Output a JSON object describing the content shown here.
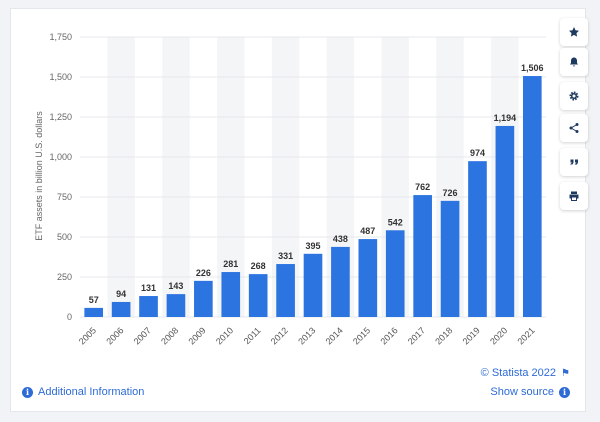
{
  "chart_data": {
    "type": "bar",
    "title": "",
    "xlabel": "",
    "ylabel": "ETF assets in billion U.S. dollars",
    "categories": [
      "2005",
      "2006",
      "2007",
      "2008",
      "2009",
      "2010",
      "2011",
      "2012",
      "2013",
      "2014",
      "2015",
      "2016",
      "2017",
      "2018",
      "2019",
      "2020",
      "2021"
    ],
    "values": [
      57,
      94,
      131,
      143,
      226,
      281,
      268,
      331,
      395,
      438,
      487,
      542,
      762,
      726,
      974,
      1194,
      1506
    ],
    "value_labels": [
      "57",
      "94",
      "131",
      "143",
      "226",
      "281",
      "268",
      "331",
      "395",
      "438",
      "487",
      "542",
      "762",
      "726",
      "974",
      "1,194",
      "1,506"
    ],
    "ylim": [
      0,
      1750
    ],
    "yticks": [
      0,
      250,
      500,
      750,
      1000,
      1250,
      1500,
      1750
    ],
    "ytick_labels": [
      "0",
      "250",
      "500",
      "750",
      "1,000",
      "1,250",
      "1,500",
      "1,750"
    ],
    "grid": true,
    "legend": "none",
    "bar_color": "#2c74e0",
    "band_color": "#f4f5f7"
  },
  "footer": {
    "additional_info": "Additional Information",
    "copyright": "© Statista 2022",
    "show_source": "Show source"
  },
  "sidebar": {
    "buttons": [
      "star-icon",
      "bell-icon",
      "gear-icon",
      "share-icon",
      "quote-icon",
      "print-icon"
    ]
  },
  "colors": {
    "accent": "#2e6bd6",
    "icon": "#1f3a5f"
  }
}
